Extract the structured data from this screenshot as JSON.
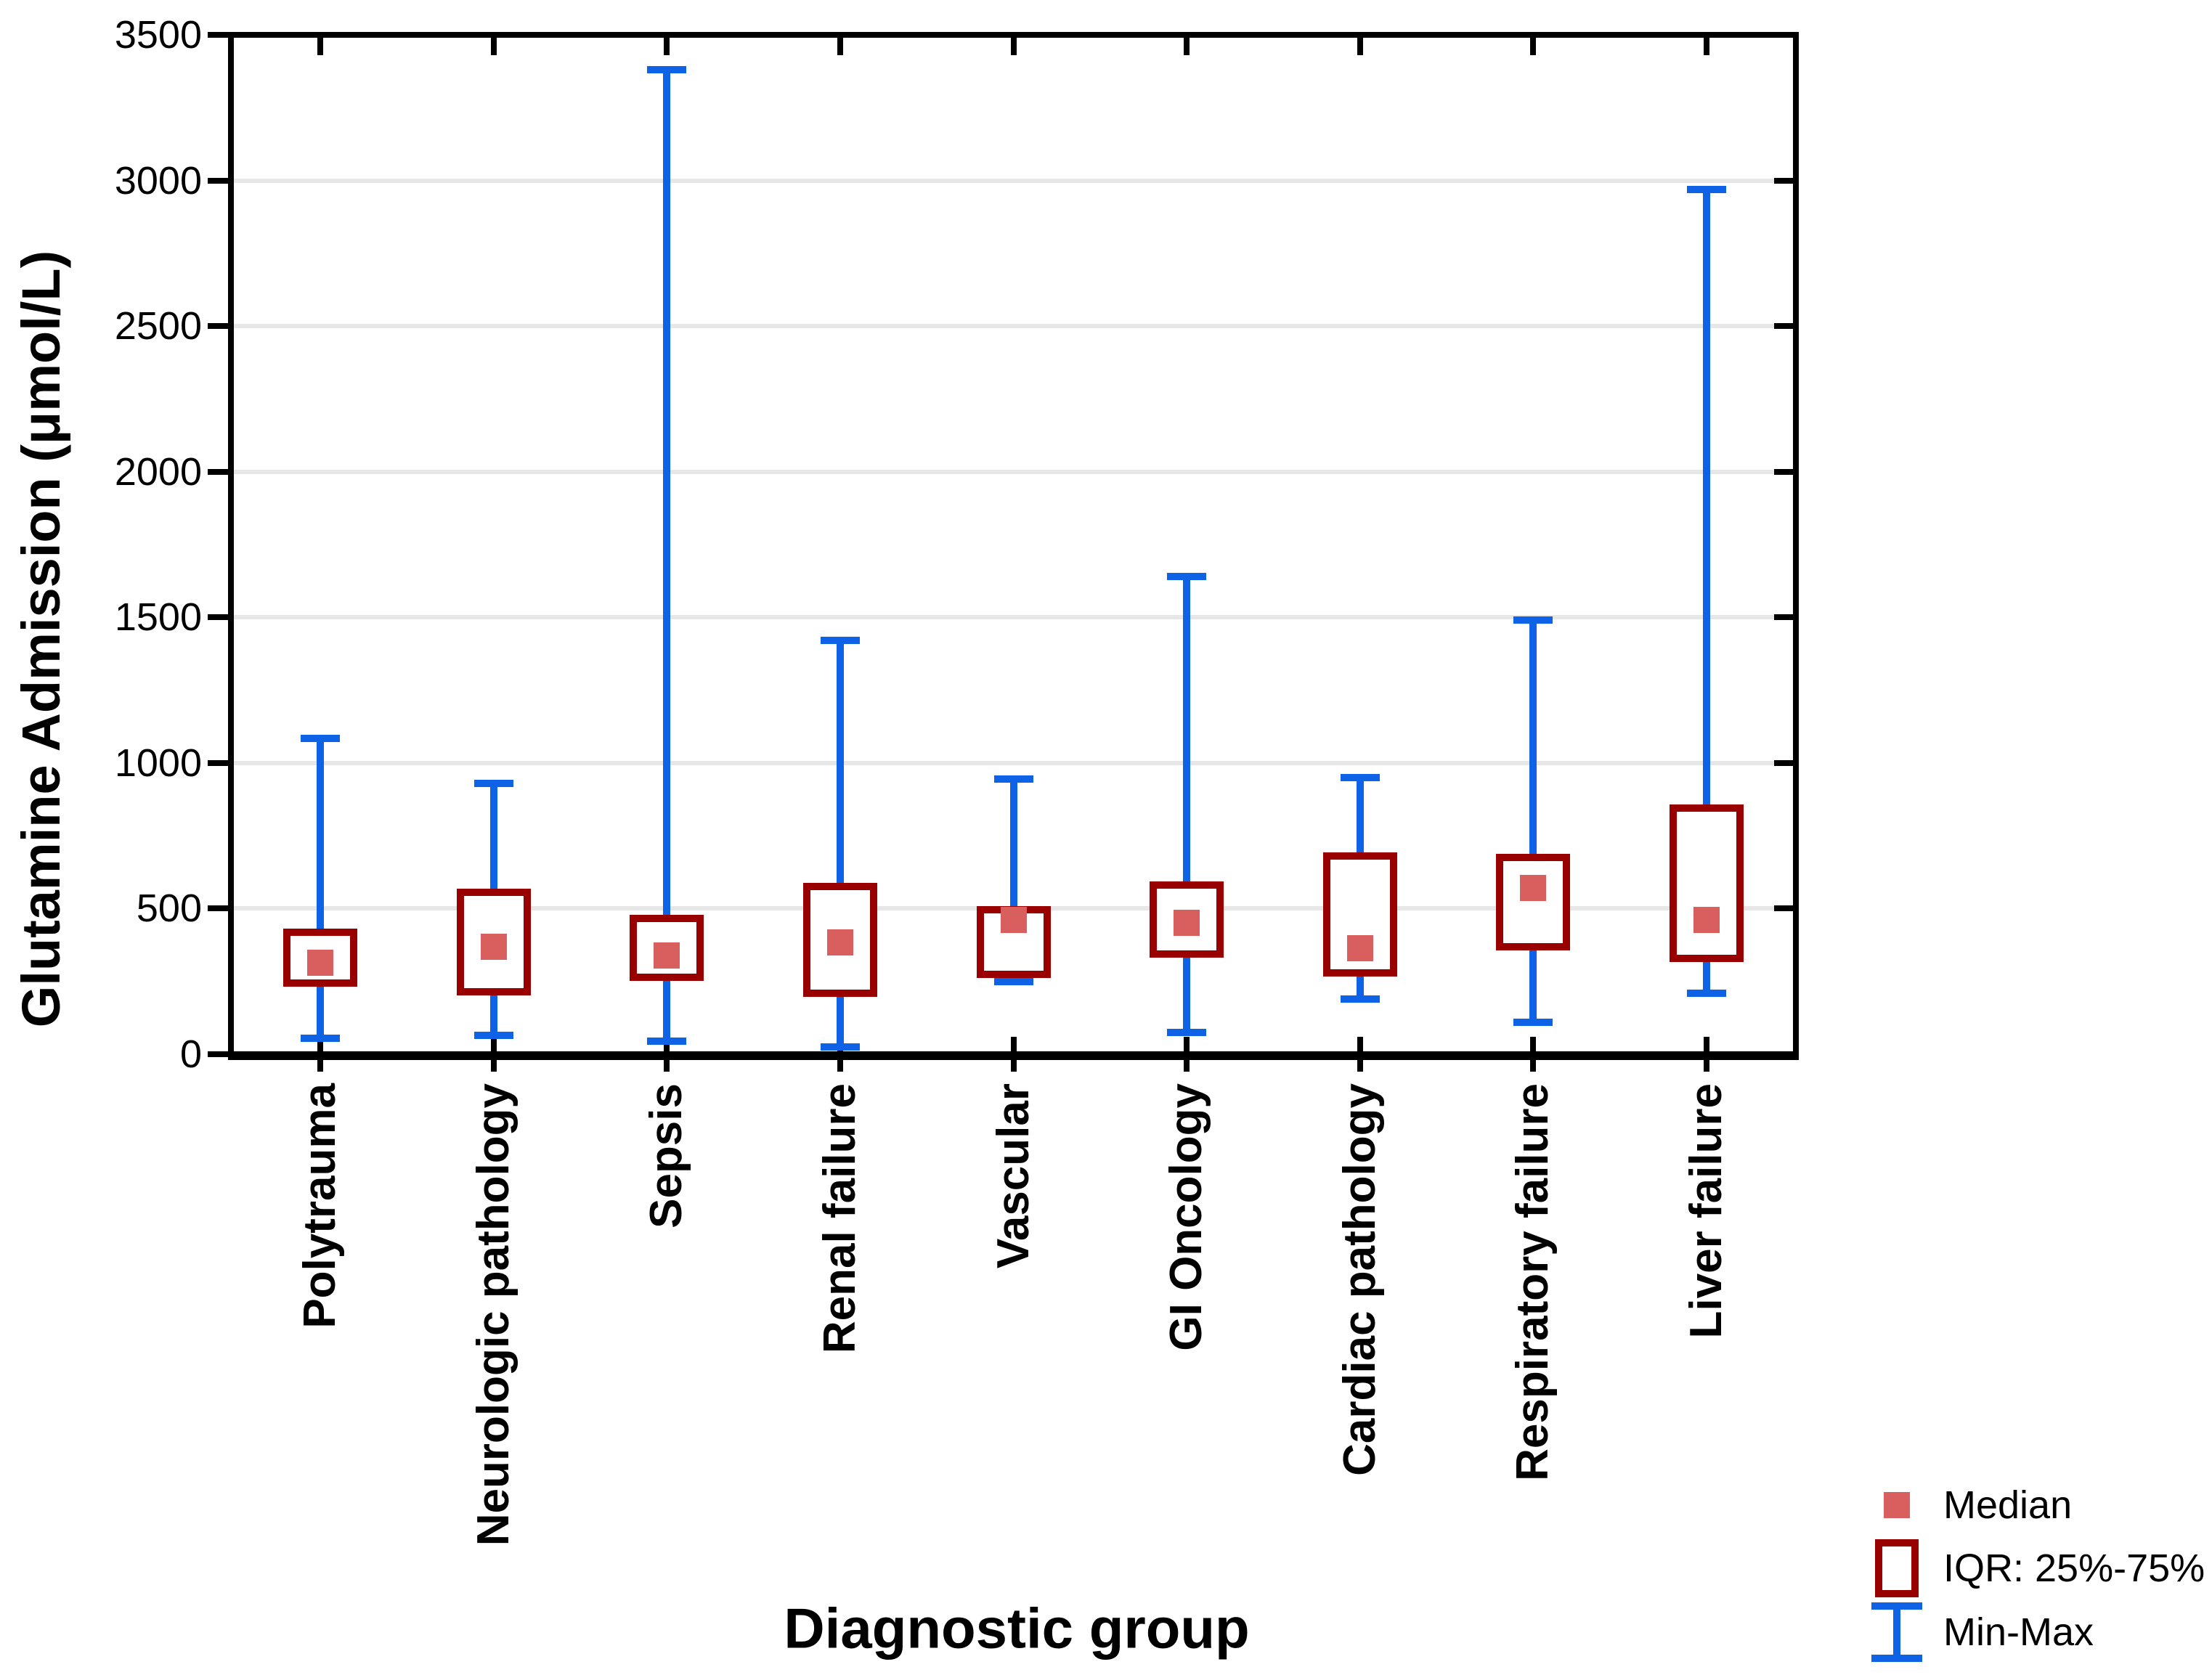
{
  "chart_data": {
    "type": "box",
    "title": "",
    "xlabel": "Diagnostic group",
    "ylabel": "Glutamine Admission (μmol/L)",
    "ylim": [
      0,
      3500
    ],
    "yticks": [
      0,
      500,
      1000,
      1500,
      2000,
      2500,
      3000,
      3500
    ],
    "ytick_labels": [
      "0",
      "500",
      "1000",
      "1500",
      "2000",
      "2500",
      "3000",
      "3500"
    ],
    "grid": "horizontal",
    "legend_position": "bottom-right",
    "legend": [
      {
        "label": "Median",
        "marker": "filled-square"
      },
      {
        "label": "IQR: 25%-75%",
        "marker": "open-box"
      },
      {
        "label": "Min-Max",
        "marker": "whisker-ibeam"
      }
    ],
    "categories": [
      "Polytrauma",
      "Neurologic pathology",
      "Sepsis",
      "Renal failure",
      "Vascular",
      "GI Oncology",
      "Cardiac pathology",
      "Respiratory failure",
      "Liver failure"
    ],
    "series": [
      {
        "name": "Polytrauma",
        "min": 55,
        "q1": 245,
        "median": 315,
        "q3": 420,
        "max": 1085
      },
      {
        "name": "Neurologic pathology",
        "min": 65,
        "q1": 215,
        "median": 370,
        "q3": 555,
        "max": 930
      },
      {
        "name": "Sepsis",
        "min": 45,
        "q1": 265,
        "median": 340,
        "q3": 465,
        "max": 3380
      },
      {
        "name": "Renal failure",
        "min": 25,
        "q1": 210,
        "median": 385,
        "q3": 575,
        "max": 1420
      },
      {
        "name": "Vascular",
        "min": 250,
        "q1": 275,
        "median": 460,
        "q3": 495,
        "max": 945
      },
      {
        "name": "GI Oncology",
        "min": 75,
        "q1": 345,
        "median": 450,
        "q3": 580,
        "max": 1640
      },
      {
        "name": "Cardiac pathology",
        "min": 190,
        "q1": 280,
        "median": 365,
        "q3": 680,
        "max": 950
      },
      {
        "name": "Respiratory failure",
        "min": 110,
        "q1": 370,
        "median": 570,
        "q3": 675,
        "max": 1490
      },
      {
        "name": "Liver failure",
        "min": 210,
        "q1": 330,
        "median": 460,
        "q3": 845,
        "max": 2970
      }
    ]
  },
  "colors": {
    "median_fill": "#D95F5F",
    "iqr_border": "#990000",
    "whisker": "#0E62E6",
    "gridline": "#E7E7E7",
    "axis": "#000000"
  }
}
